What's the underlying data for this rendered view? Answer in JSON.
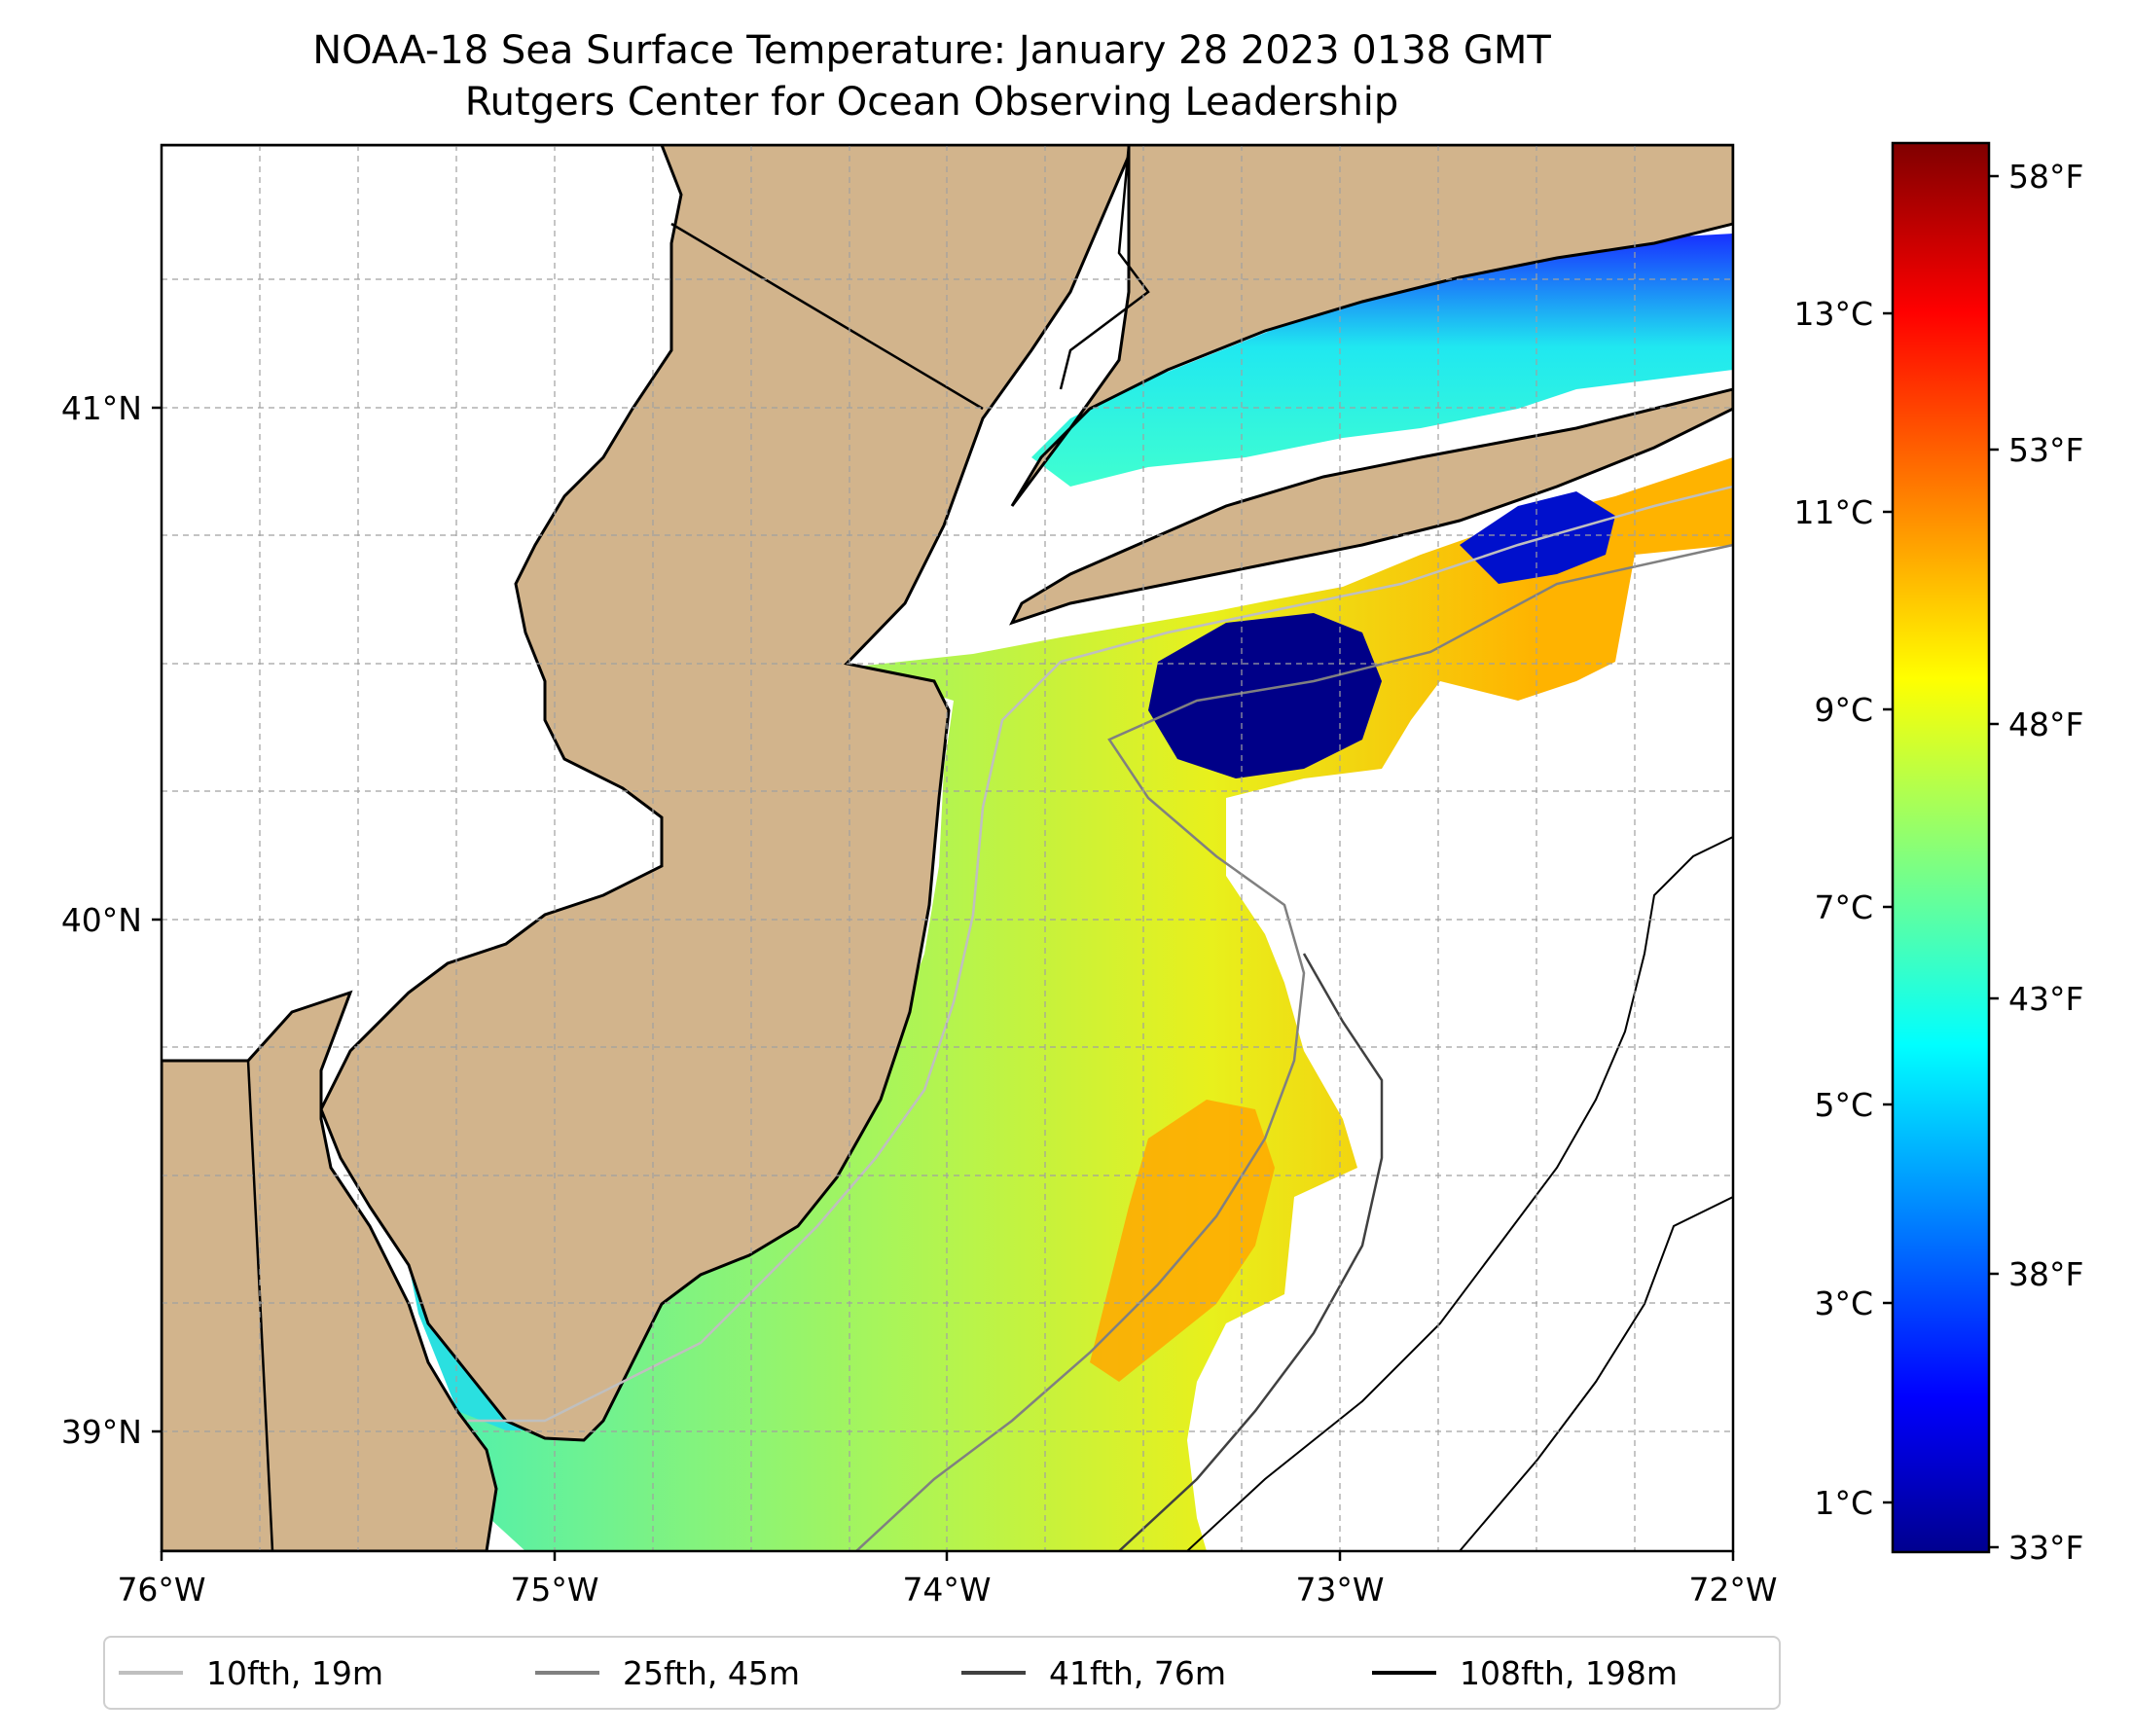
{
  "title": {
    "line1": "NOAA-18 Sea Surface Temperature: January 28 2023 0138 GMT",
    "line2": "Rutgers Center for Ocean Observing Leadership"
  },
  "map": {
    "lon_range": [
      -76,
      -72
    ],
    "lat_range": [
      38.7,
      41.45
    ],
    "x_ticks": [
      "76°W",
      "75°W",
      "74°W",
      "73°W",
      "72°W"
    ],
    "y_ticks": [
      "41°N",
      "40°N",
      "39°N"
    ],
    "land_color": "#d2b48c",
    "no_data_color": "#ffffff",
    "grid": true
  },
  "colorbar": {
    "colormap": "jet",
    "celsius_ticks": [
      "1°C",
      "3°C",
      "5°C",
      "7°C",
      "9°C",
      "11°C",
      "13°C"
    ],
    "fahrenheit_ticks": [
      "33°F",
      "38°F",
      "43°F",
      "48°F",
      "53°F",
      "58°F"
    ]
  },
  "legend": {
    "items": [
      {
        "label": "10fth, 19m",
        "color": "#bfbfbf"
      },
      {
        "label": "25fth, 45m",
        "color": "#808080"
      },
      {
        "label": "41fth, 76m",
        "color": "#404040"
      },
      {
        "label": "108fth, 198m",
        "color": "#000000"
      }
    ]
  }
}
